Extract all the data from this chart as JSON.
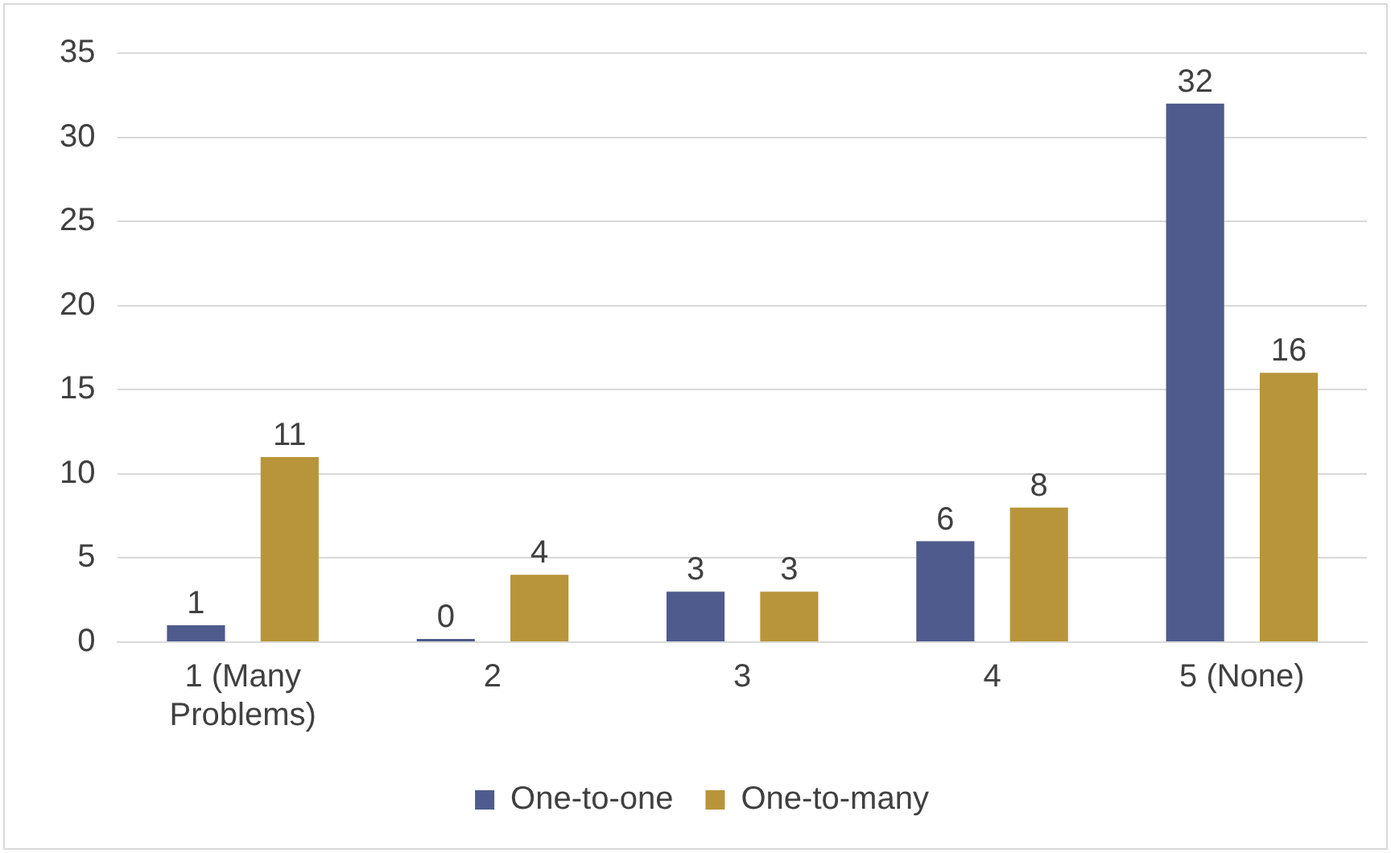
{
  "chart_data": {
    "type": "bar",
    "categories": [
      "1 (Many Problems)",
      "2",
      "3",
      "4",
      "5 (None)"
    ],
    "series": [
      {
        "name": "One-to-one",
        "color": "#4f5b8c",
        "values": [
          1,
          0,
          3,
          6,
          32
        ]
      },
      {
        "name": "One-to-many",
        "color": "#b8953a",
        "values": [
          11,
          4,
          3,
          8,
          16
        ]
      }
    ],
    "ylim": [
      0,
      35
    ],
    "yticks": [
      0,
      5,
      10,
      15,
      20,
      25,
      30,
      35
    ],
    "grid": "y",
    "legend": "bottom",
    "data_labels": true
  }
}
